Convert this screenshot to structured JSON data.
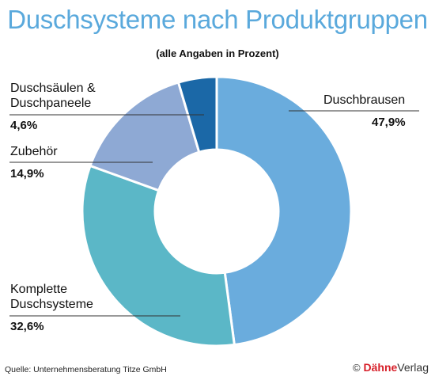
{
  "chart_data": {
    "type": "pie",
    "variant": "donut",
    "title": "Duschsysteme nach Produktgruppen",
    "subtitle": "(alle Angaben in Prozent)",
    "unit": "%",
    "slices": [
      {
        "label": "Duschbrausen",
        "value": 47.9,
        "display": "47,9%",
        "color": "#6aacdd"
      },
      {
        "label": "Komplette Duschsysteme",
        "value": 32.6,
        "display": "32,6%",
        "color": "#5bb7c7"
      },
      {
        "label": "Zubehör",
        "value": 14.9,
        "display": "14,9%",
        "color": "#8ea9d4"
      },
      {
        "label": "Duschsäulen & Duschpaneele",
        "value": 4.6,
        "display": "4,6%",
        "color": "#1b68a7"
      }
    ],
    "label_lines": {
      "duschbrausen": "Duschbrausen",
      "komplette_1": "Komplette",
      "komplette_2": "Duschsysteme",
      "zubehoer": "Zubehör",
      "saeulen_1": "Duschsäulen &",
      "saeulen_2": "Duschpaneele"
    }
  },
  "footer": {
    "source": "Quelle: Unternehmensberatung Titze GmbH",
    "publisher_symbol": "©",
    "publisher_brand": "Dähne",
    "publisher_name": "Verlag"
  }
}
